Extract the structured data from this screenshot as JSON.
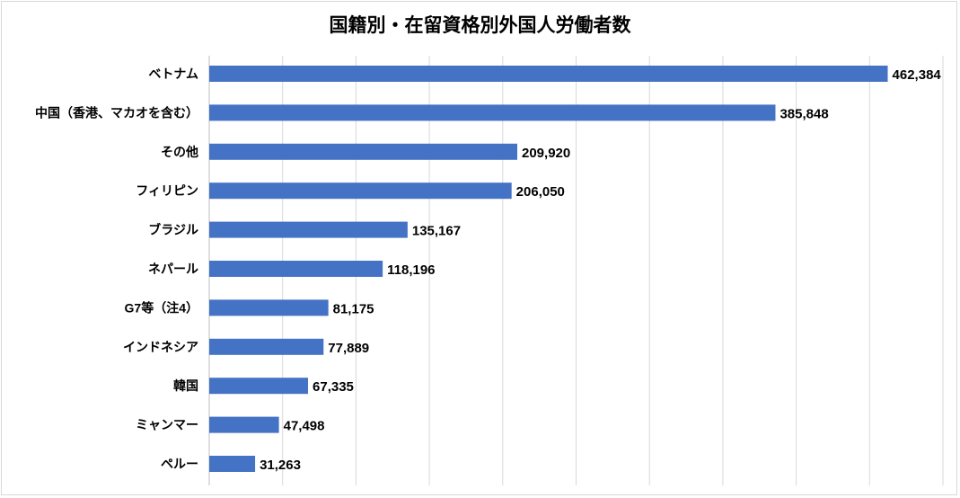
{
  "chart_data": {
    "type": "bar",
    "orientation": "horizontal",
    "title": "国籍別・在留資格別外国人労働者数",
    "categories": [
      "ベトナム",
      "中国（香港、マカオを含む）",
      "その他",
      "フィリピン",
      "ブラジル",
      "ネパール",
      "G7等（注4）",
      "インドネシア",
      "韓国",
      "ミャンマー",
      "ペルー"
    ],
    "values": [
      462384,
      385848,
      209920,
      206050,
      135167,
      118196,
      81175,
      77889,
      67335,
      47498,
      31263
    ],
    "value_labels": [
      "462,384",
      "385,848",
      "209,920",
      "206,050",
      "135,167",
      "118,196",
      "81,175",
      "77,889",
      "67,335",
      "47,498",
      "31,263"
    ],
    "xlabel": "",
    "ylabel": "",
    "xlim": [
      0,
      500000
    ],
    "grid_step": 50000,
    "grid": true,
    "legend": "none",
    "bar_color": "#4472c4"
  }
}
